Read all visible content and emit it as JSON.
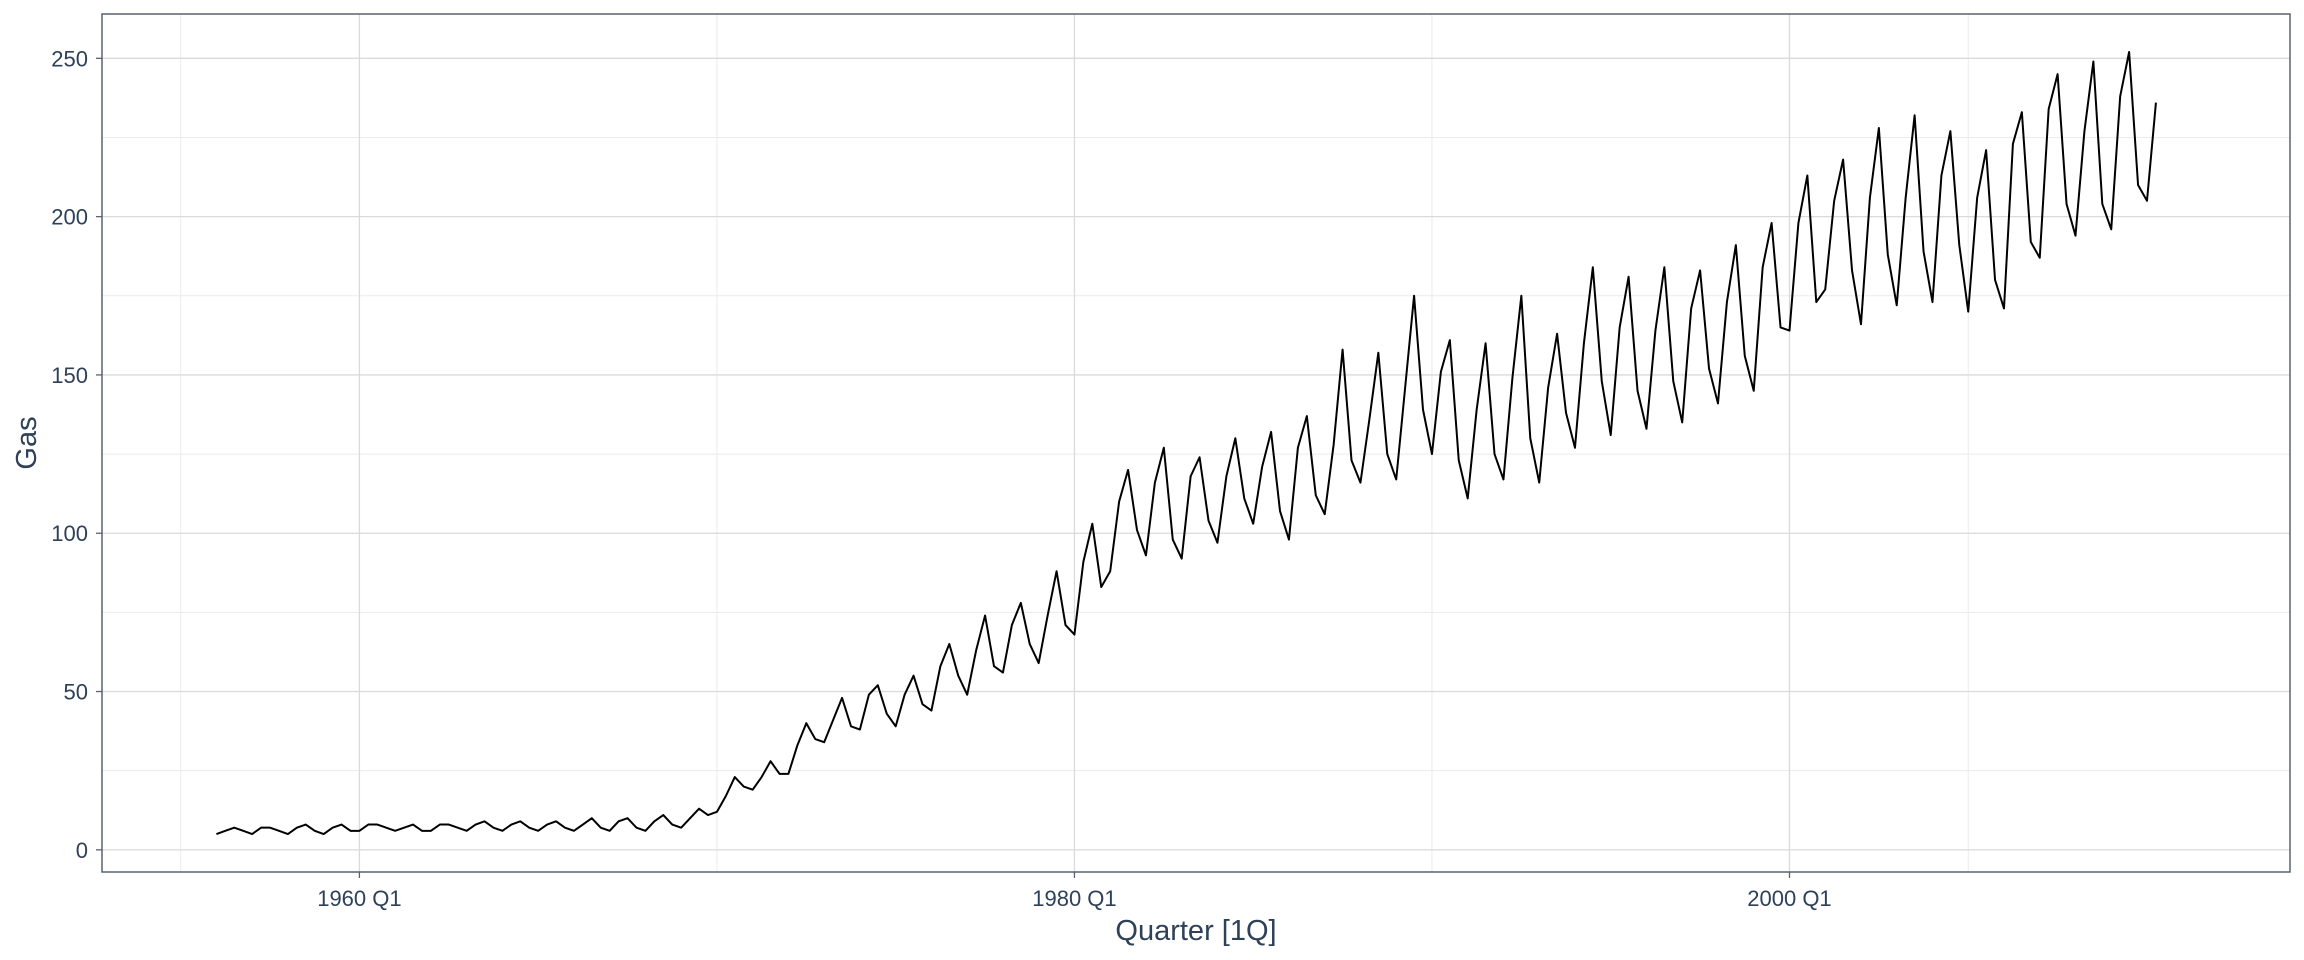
{
  "chart_data": {
    "type": "line",
    "title": "",
    "xlabel": "Quarter [1Q]",
    "ylabel": "Gas",
    "x_start": "1956 Q1",
    "x_end": "2010 Q2",
    "xlim": [
      1952.8,
      2014.0
    ],
    "ylim": [
      -7,
      264
    ],
    "x_ticks": [
      {
        "value": 1960,
        "label": "1960 Q1"
      },
      {
        "value": 1980,
        "label": "1980 Q1"
      },
      {
        "value": 2000,
        "label": "2000 Q1"
      }
    ],
    "y_ticks": [
      {
        "value": 0,
        "label": "0"
      },
      {
        "value": 50,
        "label": "50"
      },
      {
        "value": 100,
        "label": "100"
      },
      {
        "value": 150,
        "label": "150"
      },
      {
        "value": 200,
        "label": "200"
      },
      {
        "value": 250,
        "label": "250"
      }
    ],
    "grid": true,
    "line_color": "#000000",
    "values": [
      5,
      6,
      7,
      6,
      5,
      7,
      7,
      6,
      5,
      7,
      8,
      6,
      5,
      7,
      8,
      6,
      6,
      8,
      8,
      7,
      6,
      7,
      8,
      6,
      6,
      8,
      8,
      7,
      6,
      8,
      9,
      7,
      6,
      8,
      9,
      7,
      6,
      8,
      9,
      7,
      6,
      8,
      10,
      7,
      6,
      9,
      10,
      7,
      6,
      9,
      11,
      8,
      7,
      10,
      13,
      11,
      12,
      17,
      23,
      20,
      19,
      23,
      28,
      24,
      24,
      33,
      40,
      35,
      34,
      41,
      48,
      39,
      38,
      49,
      52,
      43,
      39,
      49,
      55,
      46,
      44,
      58,
      65,
      55,
      49,
      63,
      74,
      58,
      56,
      71,
      78,
      65,
      59,
      74,
      88,
      71,
      68,
      91,
      103,
      83,
      88,
      110,
      120,
      101,
      93,
      116,
      127,
      98,
      92,
      118,
      124,
      104,
      97,
      118,
      130,
      111,
      103,
      121,
      132,
      107,
      98,
      127,
      137,
      112,
      106,
      128,
      158,
      123,
      116,
      136,
      157,
      125,
      117,
      146,
      175,
      139,
      125,
      151,
      161,
      123,
      111,
      139,
      160,
      125,
      117,
      149,
      175,
      130,
      116,
      146,
      163,
      138,
      127,
      160,
      184,
      148,
      131,
      165,
      181,
      145,
      133,
      164,
      184,
      148,
      135,
      171,
      183,
      152,
      141,
      173,
      191,
      156,
      145,
      184,
      198,
      165,
      164,
      198,
      213,
      173,
      177,
      205,
      218,
      183,
      166,
      206,
      228,
      188,
      172,
      206,
      232,
      189,
      173,
      213,
      227,
      191,
      170,
      206,
      221,
      180,
      171,
      223,
      233,
      192,
      187,
      234,
      245,
      204,
      194,
      227,
      249,
      204,
      196,
      238,
      252,
      210,
      205,
      236
    ]
  }
}
